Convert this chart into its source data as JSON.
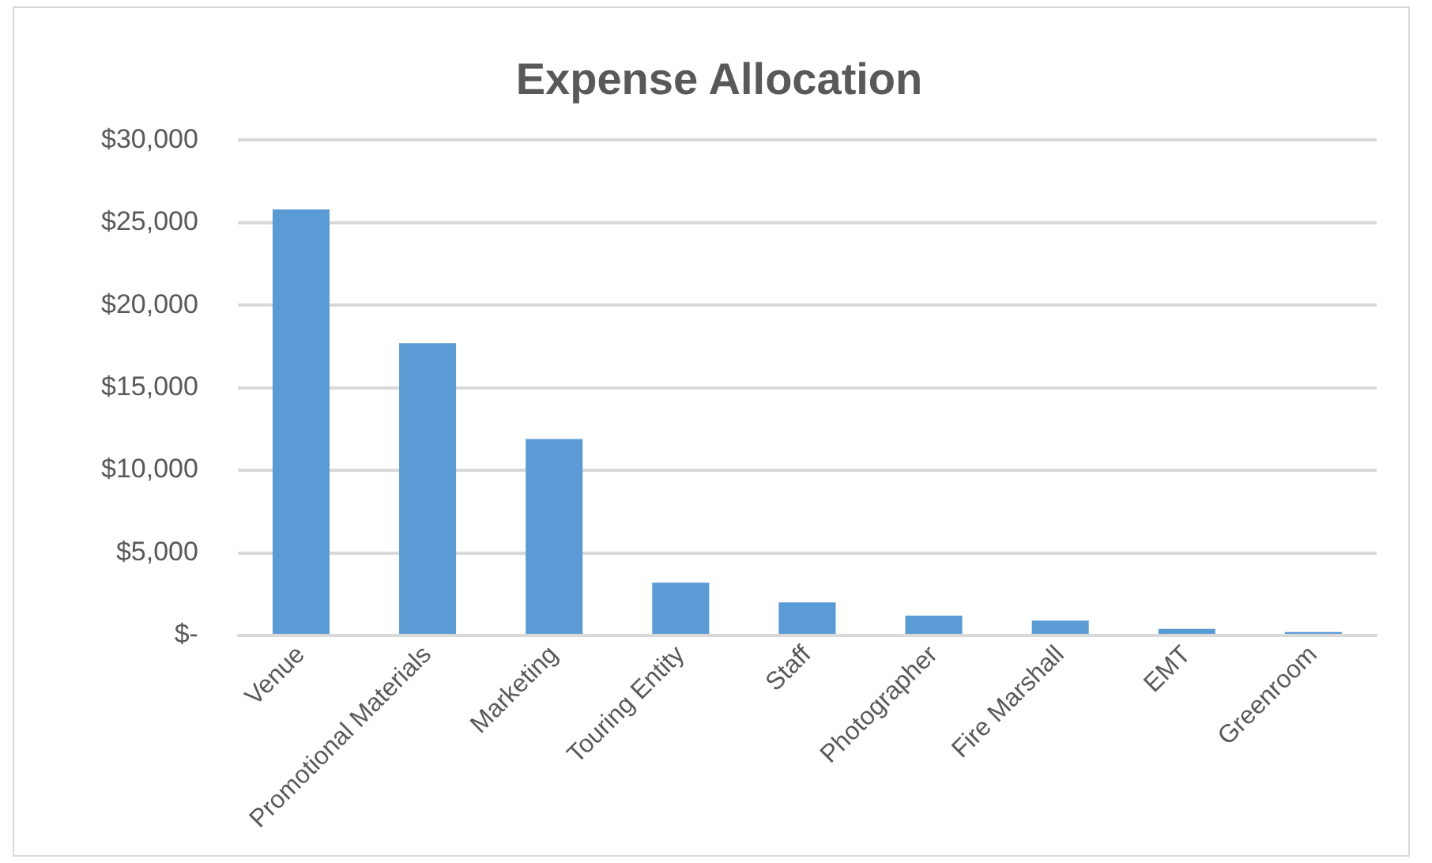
{
  "chart_data": {
    "type": "bar",
    "title": "Expense Allocation",
    "categories": [
      "Venue",
      "Promotional Materials",
      "Marketing",
      "Touring Entity",
      "Staff",
      "Photographer",
      "Fire Marshall",
      "EMT",
      "Greenroom"
    ],
    "values": [
      25800,
      17700,
      11900,
      3200,
      2000,
      1200,
      900,
      400,
      200
    ],
    "color": "#5b9bd5",
    "ylim": [
      0,
      30000
    ],
    "yticks": [
      {
        "value": 0,
        "label": "$-"
      },
      {
        "value": 5000,
        "label": "$5,000"
      },
      {
        "value": 10000,
        "label": "$10,000"
      },
      {
        "value": 15000,
        "label": "$15,000"
      },
      {
        "value": 20000,
        "label": "$20,000"
      },
      {
        "value": 25000,
        "label": "$25,000"
      },
      {
        "value": 30000,
        "label": "$30,000"
      }
    ],
    "grid": "y",
    "legend": false
  }
}
